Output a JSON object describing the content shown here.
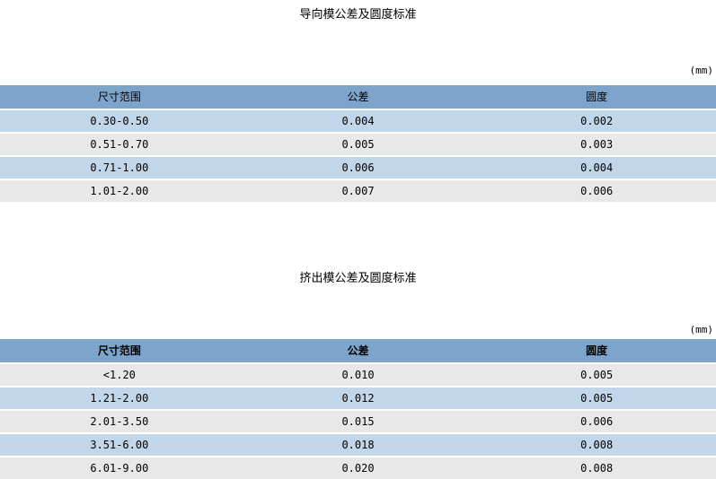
{
  "tables": [
    {
      "title": "导向模公差及圆度标准",
      "unit": "(mm)",
      "columns": [
        "尺寸范围",
        "公差",
        "圆度"
      ],
      "rows": [
        [
          "0.30-0.50",
          "0.004",
          "0.002"
        ],
        [
          "0.51-0.70",
          "0.005",
          "0.003"
        ],
        [
          "0.71-1.00",
          "0.006",
          "0.004"
        ],
        [
          "1.01-2.00",
          "0.007",
          "0.006"
        ]
      ]
    },
    {
      "title": "挤出模公差及圆度标准",
      "unit": "(mm)",
      "columns": [
        "尺寸范围",
        "公差",
        "圆度"
      ],
      "rows": [
        [
          "<1.20",
          "0.010",
          "0.005"
        ],
        [
          "1.21-2.00",
          "0.012",
          "0.005"
        ],
        [
          "2.01-3.50",
          "0.015",
          "0.006"
        ],
        [
          "3.51-6.00",
          "0.018",
          "0.008"
        ],
        [
          "6.01-9.00",
          "0.020",
          "0.008"
        ]
      ]
    }
  ],
  "colors": {
    "header_bg": "#7da5cc",
    "row_blue": "#c2d6ea",
    "row_gray": "#e8e8e8",
    "text": "#000000",
    "background": "#ffffff"
  }
}
